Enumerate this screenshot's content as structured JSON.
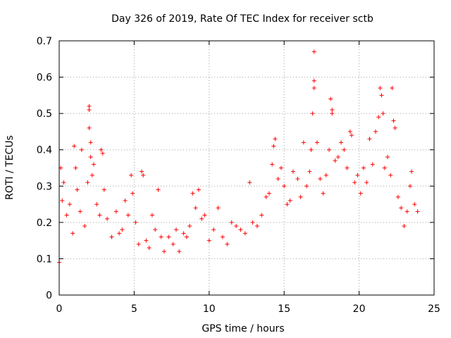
{
  "chart_data": {
    "type": "scatter",
    "title": "Day 326 of 2019, Rate Of TEC Index for receiver sctb",
    "xlabel": "GPS time / hours",
    "ylabel": "ROTI / TECUs",
    "xlim": [
      0,
      25
    ],
    "ylim": [
      0,
      0.7
    ],
    "x_ticks": [
      0,
      5,
      10,
      15,
      20,
      25
    ],
    "y_ticks": [
      0,
      0.1,
      0.2,
      0.3,
      0.4,
      0.5,
      0.6,
      0.7
    ],
    "x_tick_labels": [
      "0",
      "5",
      "10",
      "15",
      "20",
      "25"
    ],
    "y_tick_labels": [
      "0",
      "0.1",
      "0.2",
      "0.3",
      "0.4",
      "0.5",
      "0.6",
      "0.7"
    ],
    "grid": true,
    "marker": "+",
    "series_color": "#ff0000",
    "series": [
      {
        "name": "ROTI",
        "points": [
          [
            0.0,
            0.09
          ],
          [
            0.1,
            0.35
          ],
          [
            0.2,
            0.26
          ],
          [
            0.3,
            0.31
          ],
          [
            0.5,
            0.22
          ],
          [
            0.7,
            0.25
          ],
          [
            0.9,
            0.17
          ],
          [
            1.0,
            0.41
          ],
          [
            1.1,
            0.35
          ],
          [
            1.2,
            0.29
          ],
          [
            1.4,
            0.23
          ],
          [
            1.5,
            0.4
          ],
          [
            1.7,
            0.19
          ],
          [
            1.9,
            0.31
          ],
          [
            2.0,
            0.51
          ],
          [
            2.0,
            0.52
          ],
          [
            2.0,
            0.46
          ],
          [
            2.1,
            0.42
          ],
          [
            2.1,
            0.38
          ],
          [
            2.2,
            0.33
          ],
          [
            2.3,
            0.36
          ],
          [
            2.5,
            0.25
          ],
          [
            2.7,
            0.22
          ],
          [
            2.8,
            0.4
          ],
          [
            2.9,
            0.39
          ],
          [
            3.0,
            0.29
          ],
          [
            3.2,
            0.21
          ],
          [
            3.5,
            0.16
          ],
          [
            3.8,
            0.23
          ],
          [
            4.0,
            0.17
          ],
          [
            4.2,
            0.18
          ],
          [
            4.4,
            0.26
          ],
          [
            4.6,
            0.22
          ],
          [
            4.8,
            0.33
          ],
          [
            4.9,
            0.28
          ],
          [
            5.1,
            0.2
          ],
          [
            5.3,
            0.14
          ],
          [
            5.5,
            0.34
          ],
          [
            5.6,
            0.33
          ],
          [
            5.8,
            0.15
          ],
          [
            6.0,
            0.13
          ],
          [
            6.2,
            0.22
          ],
          [
            6.4,
            0.18
          ],
          [
            6.6,
            0.29
          ],
          [
            6.8,
            0.16
          ],
          [
            7.0,
            0.12
          ],
          [
            7.3,
            0.16
          ],
          [
            7.6,
            0.14
          ],
          [
            7.8,
            0.18
          ],
          [
            8.0,
            0.12
          ],
          [
            8.3,
            0.17
          ],
          [
            8.5,
            0.16
          ],
          [
            8.7,
            0.19
          ],
          [
            8.9,
            0.28
          ],
          [
            9.1,
            0.24
          ],
          [
            9.3,
            0.29
          ],
          [
            9.5,
            0.21
          ],
          [
            9.7,
            0.22
          ],
          [
            10.0,
            0.15
          ],
          [
            10.3,
            0.18
          ],
          [
            10.6,
            0.24
          ],
          [
            10.9,
            0.16
          ],
          [
            11.2,
            0.14
          ],
          [
            11.5,
            0.2
          ],
          [
            11.8,
            0.19
          ],
          [
            12.1,
            0.18
          ],
          [
            12.4,
            0.17
          ],
          [
            12.7,
            0.31
          ],
          [
            12.9,
            0.2
          ],
          [
            13.2,
            0.19
          ],
          [
            13.5,
            0.22
          ],
          [
            13.8,
            0.27
          ],
          [
            14.0,
            0.28
          ],
          [
            14.2,
            0.36
          ],
          [
            14.3,
            0.41
          ],
          [
            14.4,
            0.43
          ],
          [
            14.6,
            0.32
          ],
          [
            14.8,
            0.35
          ],
          [
            15.0,
            0.3
          ],
          [
            15.2,
            0.25
          ],
          [
            15.4,
            0.26
          ],
          [
            15.6,
            0.34
          ],
          [
            15.9,
            0.32
          ],
          [
            16.1,
            0.27
          ],
          [
            16.3,
            0.42
          ],
          [
            16.5,
            0.3
          ],
          [
            16.7,
            0.34
          ],
          [
            16.8,
            0.4
          ],
          [
            16.9,
            0.5
          ],
          [
            17.0,
            0.67
          ],
          [
            17.0,
            0.59
          ],
          [
            17.0,
            0.57
          ],
          [
            17.2,
            0.42
          ],
          [
            17.4,
            0.32
          ],
          [
            17.6,
            0.28
          ],
          [
            17.8,
            0.33
          ],
          [
            18.0,
            0.4
          ],
          [
            18.1,
            0.54
          ],
          [
            18.2,
            0.51
          ],
          [
            18.2,
            0.5
          ],
          [
            18.4,
            0.37
          ],
          [
            18.6,
            0.38
          ],
          [
            18.8,
            0.42
          ],
          [
            19.0,
            0.4
          ],
          [
            19.2,
            0.35
          ],
          [
            19.4,
            0.45
          ],
          [
            19.5,
            0.44
          ],
          [
            19.7,
            0.31
          ],
          [
            19.9,
            0.33
          ],
          [
            20.1,
            0.28
          ],
          [
            20.3,
            0.35
          ],
          [
            20.5,
            0.31
          ],
          [
            20.7,
            0.43
          ],
          [
            20.9,
            0.36
          ],
          [
            21.1,
            0.45
          ],
          [
            21.3,
            0.49
          ],
          [
            21.4,
            0.57
          ],
          [
            21.5,
            0.55
          ],
          [
            21.6,
            0.5
          ],
          [
            21.7,
            0.35
          ],
          [
            21.9,
            0.38
          ],
          [
            22.1,
            0.33
          ],
          [
            22.2,
            0.57
          ],
          [
            22.3,
            0.48
          ],
          [
            22.4,
            0.46
          ],
          [
            22.6,
            0.27
          ],
          [
            22.8,
            0.24
          ],
          [
            23.0,
            0.19
          ],
          [
            23.2,
            0.23
          ],
          [
            23.4,
            0.3
          ],
          [
            23.5,
            0.34
          ],
          [
            23.7,
            0.25
          ],
          [
            23.9,
            0.23
          ]
        ]
      }
    ]
  }
}
